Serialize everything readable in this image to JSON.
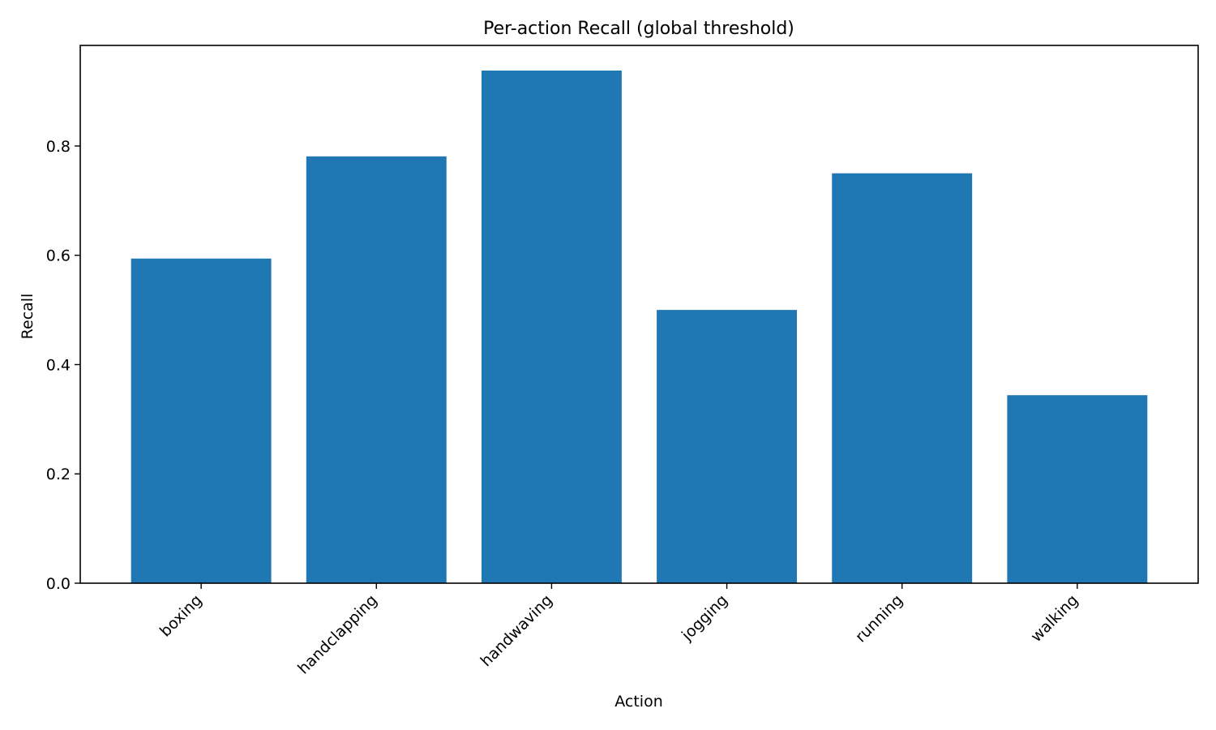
{
  "chart_data": {
    "type": "bar",
    "title": "Per-action Recall (global threshold)",
    "xlabel": "Action",
    "ylabel": "Recall",
    "categories": [
      "boxing",
      "handclapping",
      "handwaving",
      "jogging",
      "running",
      "walking"
    ],
    "values": [
      0.594,
      0.781,
      0.938,
      0.5,
      0.75,
      0.344
    ],
    "ylim": [
      0,
      0.984
    ],
    "yticks": [
      0.0,
      0.2,
      0.4,
      0.6,
      0.8
    ],
    "ytick_labels": [
      "0.0",
      "0.2",
      "0.4",
      "0.6",
      "0.8"
    ],
    "bar_color": "#1f77b4",
    "grid": false,
    "legend": "none",
    "tick_label_rotation_deg": 45
  }
}
